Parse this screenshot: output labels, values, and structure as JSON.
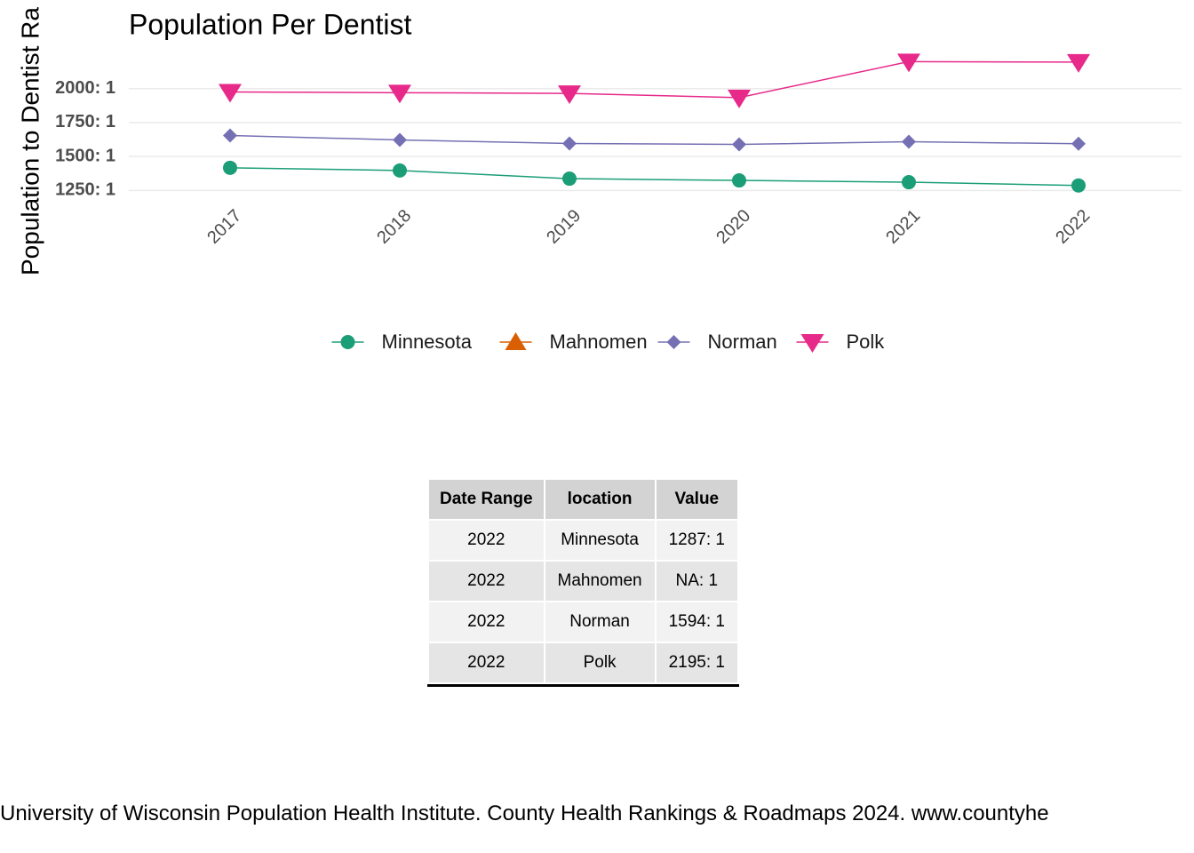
{
  "chart_data": {
    "type": "line",
    "title": "Population Per Dentist",
    "y_label": "Population to Dentist Ra",
    "categories": [
      "2017",
      "2018",
      "2019",
      "2020",
      "2021",
      "2022"
    ],
    "series": [
      {
        "name": "Minnesota",
        "color": "#1b9e77",
        "marker": "circle",
        "values": [
          1417,
          1397,
          1337,
          1324,
          1311,
          1287
        ]
      },
      {
        "name": "Mahnomen",
        "color": "#d95f02",
        "marker": "triangle-up",
        "values": [
          null,
          null,
          null,
          null,
          null,
          null
        ]
      },
      {
        "name": "Norman",
        "color": "#7570b3",
        "marker": "diamond",
        "values": [
          1655,
          1622,
          1596,
          1589,
          1609,
          1594
        ]
      },
      {
        "name": "Polk",
        "color": "#e7298a",
        "marker": "triangle-down",
        "values": [
          1975,
          1970,
          1965,
          1934,
          2199,
          2195
        ]
      }
    ],
    "ylim": [
      1200,
      2260
    ],
    "yticks": [
      {
        "value": 1250,
        "label": "1250: 1"
      },
      {
        "value": 1500,
        "label": "1500: 1"
      },
      {
        "value": 1750,
        "label": "1750: 1"
      },
      {
        "value": 2000,
        "label": "2000: 1"
      }
    ],
    "grid": true,
    "legend": "bottom"
  },
  "table": {
    "header": [
      "Date Range",
      "location",
      "Value"
    ],
    "rows": [
      [
        "2022",
        "Minnesota",
        "1287: 1"
      ],
      [
        "2022",
        "Mahnomen",
        "NA: 1"
      ],
      [
        "2022",
        "Norman",
        "1594: 1"
      ],
      [
        "2022",
        "Polk",
        "2195: 1"
      ]
    ]
  },
  "footer": "University of Wisconsin Population Health Institute. County Health Rankings & Roadmaps 2024. www.countyhe"
}
